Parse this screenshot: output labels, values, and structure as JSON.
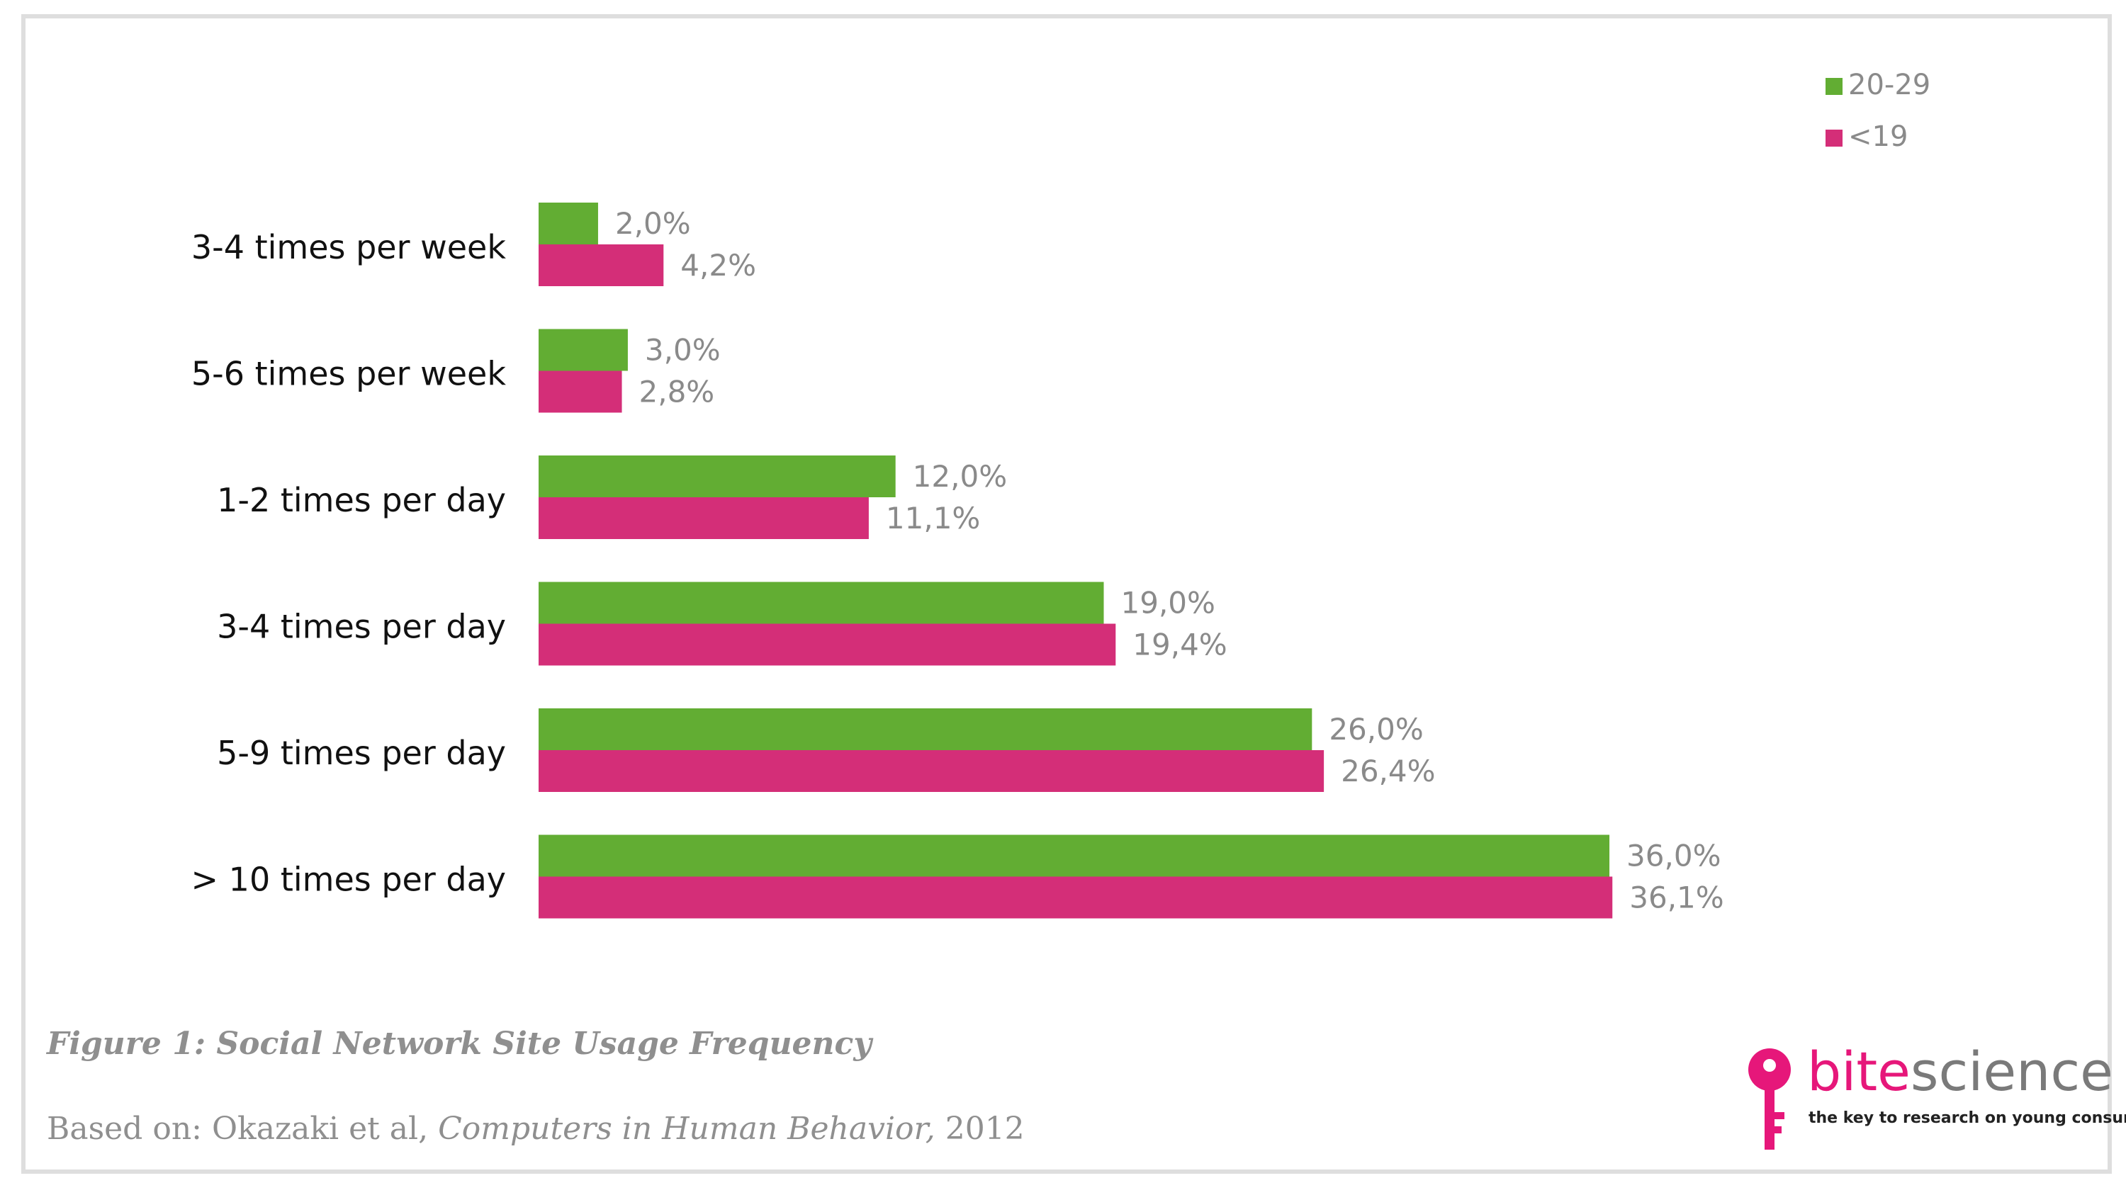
{
  "chart_data": {
    "type": "bar",
    "orientation": "horizontal",
    "categories": [
      "3-4 times per week",
      "5-6 times per week",
      "1-2 times per day",
      "3-4 times per day",
      "5-9 times per day",
      "> 10 times per day"
    ],
    "series": [
      {
        "name": "20-29",
        "color": "#62ad33",
        "values": [
          2.0,
          3.0,
          12.0,
          19.0,
          26.0,
          36.0
        ],
        "labels": [
          "2,0%",
          "3,0%",
          "12,0%",
          "19,0%",
          "26,0%",
          "36,0%"
        ]
      },
      {
        "name": "<19",
        "color": "#d42e78",
        "values": [
          4.2,
          2.8,
          11.1,
          19.4,
          26.4,
          36.1
        ],
        "labels": [
          "4,2%",
          "2,8%",
          "11,1%",
          "19,4%",
          "26,4%",
          "36,1%"
        ]
      }
    ],
    "xlim": [
      0,
      38
    ],
    "grid": false,
    "legend": "top-right"
  },
  "caption": "Figure 1: Social Network Site Usage Frequency",
  "source": {
    "prefix": "Based on: Okazaki et al, ",
    "journal": "Computers in Human Behavior,",
    "year": "2012"
  },
  "logo": {
    "bite": "bite",
    "science": "science",
    "tagline": "the key to research on young consumers",
    "icon": "key-icon"
  }
}
